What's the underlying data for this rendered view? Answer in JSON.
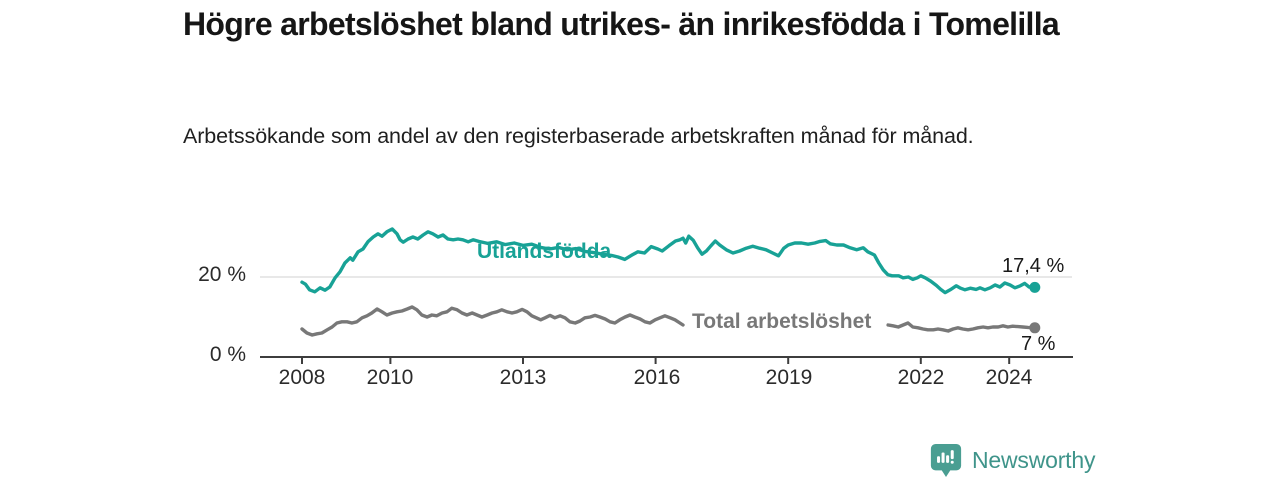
{
  "header": {
    "title": "Högre arbetslöshet bland utrikes- än inrikesfödda i Tomelilla",
    "subtitle": "Arbetssökande som andel av den registerbaserade arbetskraften månad för månad."
  },
  "chart_data": {
    "type": "line",
    "title": "Högre arbetslöshet bland utrikes- än inrikesfödda i Tomelilla",
    "subtitle": "Arbetssökande som andel av den registerbaserade arbetskraften månad för månad.",
    "unit": "%",
    "xlabel": "",
    "ylabel": "",
    "xlim": [
      2007.8,
      2025.4
    ],
    "ylim": [
      0,
      34
    ],
    "grid": "single horizontal gridline at 20 %",
    "legend_position": "labels inline on lines",
    "yticks": [
      {
        "value": 0,
        "label": "0 %"
      },
      {
        "value": 20,
        "label": "20 %"
      }
    ],
    "xticks": [
      {
        "year": 2008,
        "label": "2008"
      },
      {
        "year": 2010,
        "label": "2010"
      },
      {
        "year": 2013,
        "label": "2013"
      },
      {
        "year": 2016,
        "label": "2016"
      },
      {
        "year": 2019,
        "label": "2019"
      },
      {
        "year": 2022,
        "label": "2022"
      },
      {
        "year": 2024,
        "label": "2024"
      }
    ],
    "series": [
      {
        "id": "utlandsfodda",
        "name": "Utlandsfödda",
        "color": "#18a296",
        "end_label": "17,4 %",
        "end_value": 17.4,
        "segments": [
          [
            [
              2008.0,
              18.7
            ],
            [
              2008.08,
              18.2
            ],
            [
              2008.17,
              16.8
            ],
            [
              2008.29,
              16.3
            ],
            [
              2008.41,
              17.3
            ],
            [
              2008.52,
              16.7
            ],
            [
              2008.63,
              17.5
            ],
            [
              2008.75,
              19.8
            ],
            [
              2008.86,
              21.3
            ],
            [
              2008.97,
              23.5
            ],
            [
              2009.09,
              24.8
            ],
            [
              2009.15,
              24.2
            ],
            [
              2009.27,
              26.3
            ],
            [
              2009.38,
              27.0
            ],
            [
              2009.49,
              28.8
            ],
            [
              2009.61,
              30.0
            ],
            [
              2009.72,
              30.8
            ],
            [
              2009.81,
              30.2
            ],
            [
              2009.92,
              31.3
            ],
            [
              2010.04,
              32.0
            ],
            [
              2010.15,
              30.8
            ],
            [
              2010.22,
              29.3
            ],
            [
              2010.29,
              28.7
            ],
            [
              2010.4,
              29.5
            ],
            [
              2010.51,
              30.0
            ],
            [
              2010.62,
              29.5
            ],
            [
              2010.74,
              30.5
            ],
            [
              2010.85,
              31.3
            ],
            [
              2010.96,
              30.8
            ],
            [
              2011.08,
              30.0
            ],
            [
              2011.19,
              30.5
            ],
            [
              2011.3,
              29.5
            ],
            [
              2011.42,
              29.3
            ],
            [
              2011.53,
              29.5
            ],
            [
              2011.64,
              29.3
            ],
            [
              2011.76,
              28.8
            ],
            [
              2011.87,
              29.3
            ],
            [
              2012.0,
              28.9
            ],
            [
              2012.2,
              28.4
            ],
            [
              2012.4,
              28.8
            ],
            [
              2012.6,
              28.1
            ],
            [
              2012.8,
              28.5
            ],
            [
              2013.0,
              27.9
            ],
            [
              2013.2,
              28.2
            ],
            [
              2013.4,
              27.4
            ],
            [
              2013.6,
              27.0
            ],
            [
              2013.8,
              27.4
            ],
            [
              2014.0,
              26.8
            ],
            [
              2014.2,
              27.1
            ],
            [
              2014.4,
              26.4
            ],
            [
              2014.6,
              26.1
            ],
            [
              2014.8,
              25.7
            ],
            [
              2015.0,
              25.4
            ],
            [
              2015.15,
              25.0
            ],
            [
              2015.3,
              24.4
            ],
            [
              2015.45,
              25.4
            ],
            [
              2015.6,
              26.3
            ],
            [
              2015.75,
              26.0
            ],
            [
              2015.9,
              27.6
            ],
            [
              2016.05,
              27.0
            ],
            [
              2016.15,
              26.5
            ],
            [
              2016.3,
              27.8
            ],
            [
              2016.45,
              29.0
            ],
            [
              2016.55,
              29.3
            ],
            [
              2016.62,
              29.7
            ],
            [
              2016.68,
              28.5
            ],
            [
              2016.75,
              30.2
            ],
            [
              2016.85,
              29.2
            ],
            [
              2016.95,
              27.3
            ],
            [
              2017.05,
              25.7
            ],
            [
              2017.15,
              26.5
            ],
            [
              2017.25,
              27.8
            ],
            [
              2017.35,
              29.0
            ],
            [
              2017.45,
              28.0
            ],
            [
              2017.6,
              26.8
            ],
            [
              2017.75,
              26.0
            ],
            [
              2017.9,
              26.5
            ],
            [
              2018.05,
              27.2
            ],
            [
              2018.2,
              27.7
            ],
            [
              2018.35,
              27.2
            ],
            [
              2018.5,
              26.8
            ],
            [
              2018.65,
              26.0
            ],
            [
              2018.78,
              25.3
            ],
            [
              2018.9,
              27.2
            ],
            [
              2019.0,
              28.0
            ],
            [
              2019.15,
              28.5
            ],
            [
              2019.3,
              28.5
            ],
            [
              2019.45,
              28.2
            ],
            [
              2019.6,
              28.5
            ],
            [
              2019.72,
              28.9
            ],
            [
              2019.85,
              29.1
            ],
            [
              2019.95,
              28.3
            ],
            [
              2020.1,
              28.0
            ],
            [
              2020.25,
              28.0
            ],
            [
              2020.4,
              27.3
            ],
            [
              2020.55,
              26.8
            ],
            [
              2020.7,
              27.3
            ],
            [
              2020.8,
              26.3
            ],
            [
              2020.95,
              25.5
            ],
            [
              2021.05,
              23.5
            ],
            [
              2021.15,
              21.8
            ],
            [
              2021.25,
              20.6
            ],
            [
              2021.35,
              20.3
            ],
            [
              2021.5,
              20.3
            ],
            [
              2021.6,
              19.8
            ],
            [
              2021.72,
              20.0
            ],
            [
              2021.82,
              19.4
            ],
            [
              2021.92,
              19.8
            ],
            [
              2022.0,
              20.3
            ],
            [
              2022.1,
              19.8
            ],
            [
              2022.22,
              19.0
            ],
            [
              2022.35,
              17.9
            ],
            [
              2022.45,
              16.9
            ],
            [
              2022.55,
              16.1
            ],
            [
              2022.68,
              16.9
            ],
            [
              2022.8,
              17.8
            ],
            [
              2022.9,
              17.2
            ],
            [
              2023.0,
              16.8
            ],
            [
              2023.12,
              17.2
            ],
            [
              2023.25,
              16.9
            ],
            [
              2023.34,
              17.3
            ],
            [
              2023.45,
              16.8
            ],
            [
              2023.57,
              17.3
            ],
            [
              2023.68,
              18.0
            ],
            [
              2023.79,
              17.5
            ],
            [
              2023.9,
              18.5
            ],
            [
              2024.02,
              18.0
            ],
            [
              2024.13,
              17.3
            ],
            [
              2024.25,
              17.8
            ],
            [
              2024.35,
              18.4
            ],
            [
              2024.45,
              17.5
            ],
            [
              2024.58,
              17.4
            ]
          ]
        ]
      },
      {
        "id": "total",
        "name": "Total arbetslöshet",
        "color": "#787878",
        "end_label": "7 %",
        "end_value": 7,
        "segments": [
          [
            [
              2008.0,
              7.0
            ],
            [
              2008.11,
              6.0
            ],
            [
              2008.23,
              5.5
            ],
            [
              2008.34,
              5.8
            ],
            [
              2008.45,
              6.0
            ],
            [
              2008.57,
              6.8
            ],
            [
              2008.68,
              7.5
            ],
            [
              2008.79,
              8.5
            ],
            [
              2008.9,
              8.8
            ],
            [
              2009.02,
              8.8
            ],
            [
              2009.13,
              8.5
            ],
            [
              2009.24,
              8.8
            ],
            [
              2009.36,
              9.8
            ],
            [
              2009.47,
              10.3
            ],
            [
              2009.58,
              11.0
            ],
            [
              2009.7,
              12.0
            ],
            [
              2009.81,
              11.3
            ],
            [
              2009.92,
              10.5
            ],
            [
              2010.04,
              11.0
            ],
            [
              2010.15,
              11.3
            ],
            [
              2010.26,
              11.5
            ],
            [
              2010.38,
              12.0
            ],
            [
              2010.49,
              12.5
            ],
            [
              2010.6,
              11.8
            ],
            [
              2010.71,
              10.5
            ],
            [
              2010.83,
              10.0
            ],
            [
              2010.94,
              10.5
            ],
            [
              2011.05,
              10.3
            ],
            [
              2011.17,
              11.0
            ],
            [
              2011.28,
              11.3
            ],
            [
              2011.39,
              12.2
            ],
            [
              2011.51,
              11.8
            ],
            [
              2011.62,
              11.0
            ],
            [
              2011.73,
              10.5
            ],
            [
              2011.85,
              11.0
            ],
            [
              2011.96,
              10.5
            ],
            [
              2012.07,
              10.0
            ],
            [
              2012.19,
              10.5
            ],
            [
              2012.3,
              11.0
            ],
            [
              2012.41,
              11.3
            ],
            [
              2012.52,
              11.8
            ],
            [
              2012.64,
              11.3
            ],
            [
              2012.75,
              11.0
            ],
            [
              2012.86,
              11.3
            ],
            [
              2012.98,
              11.9
            ],
            [
              2013.09,
              11.3
            ],
            [
              2013.2,
              10.3
            ],
            [
              2013.3,
              9.8
            ],
            [
              2013.4,
              9.3
            ],
            [
              2013.5,
              9.8
            ],
            [
              2013.61,
              10.4
            ],
            [
              2013.72,
              9.8
            ],
            [
              2013.84,
              10.3
            ],
            [
              2013.95,
              9.8
            ],
            [
              2014.06,
              8.8
            ],
            [
              2014.18,
              8.5
            ],
            [
              2014.29,
              9.0
            ],
            [
              2014.4,
              9.8
            ],
            [
              2014.52,
              10.0
            ],
            [
              2014.63,
              10.4
            ],
            [
              2014.74,
              10.0
            ],
            [
              2014.86,
              9.5
            ],
            [
              2014.97,
              8.8
            ],
            [
              2015.08,
              8.5
            ],
            [
              2015.19,
              9.3
            ],
            [
              2015.31,
              10.0
            ],
            [
              2015.42,
              10.5
            ],
            [
              2015.53,
              10.0
            ],
            [
              2015.65,
              9.5
            ],
            [
              2015.76,
              8.8
            ],
            [
              2015.87,
              8.5
            ],
            [
              2015.99,
              9.3
            ],
            [
              2016.1,
              9.8
            ],
            [
              2016.21,
              10.3
            ],
            [
              2016.33,
              9.8
            ],
            [
              2016.44,
              9.3
            ],
            [
              2016.55,
              8.5
            ],
            [
              2016.62,
              8.0
            ]
          ],
          [
            [
              2021.26,
              8.0
            ],
            [
              2021.37,
              7.8
            ],
            [
              2021.49,
              7.5
            ],
            [
              2021.6,
              8.0
            ],
            [
              2021.71,
              8.5
            ],
            [
              2021.82,
              7.5
            ],
            [
              2021.94,
              7.3
            ],
            [
              2022.05,
              7.0
            ],
            [
              2022.16,
              6.8
            ],
            [
              2022.28,
              6.8
            ],
            [
              2022.39,
              7.0
            ],
            [
              2022.5,
              6.8
            ],
            [
              2022.62,
              6.5
            ],
            [
              2022.73,
              7.0
            ],
            [
              2022.84,
              7.3
            ],
            [
              2022.95,
              7.0
            ],
            [
              2023.07,
              6.8
            ],
            [
              2023.18,
              7.0
            ],
            [
              2023.29,
              7.3
            ],
            [
              2023.41,
              7.5
            ],
            [
              2023.52,
              7.3
            ],
            [
              2023.63,
              7.5
            ],
            [
              2023.75,
              7.5
            ],
            [
              2023.86,
              7.8
            ],
            [
              2023.97,
              7.5
            ],
            [
              2024.08,
              7.7
            ],
            [
              2024.2,
              7.6
            ],
            [
              2024.31,
              7.5
            ],
            [
              2024.42,
              7.4
            ],
            [
              2024.58,
              7.3
            ]
          ]
        ]
      }
    ]
  },
  "footer": {
    "brand": "Newsworthy",
    "logo_icon": "bar-chart-pin-icon",
    "brand_color": "#3f948a"
  }
}
